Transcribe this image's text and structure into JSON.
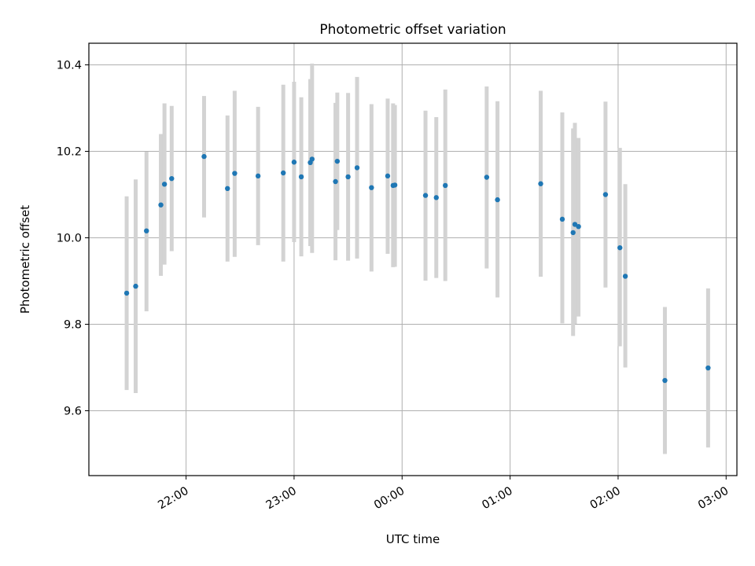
{
  "chart_data": {
    "type": "scatter",
    "title": "Photometric offset variation",
    "xlabel": "UTC time",
    "ylabel": "Photometric offset",
    "xlim": [
      "21:06",
      "03:06"
    ],
    "ylim": [
      9.45,
      10.45
    ],
    "grid": true,
    "x_ticks": [
      "22:00",
      "23:00",
      "00:00",
      "01:00",
      "02:00",
      "03:00"
    ],
    "y_ticks": [
      9.6,
      9.8,
      10.0,
      10.2,
      10.4
    ],
    "colors": {
      "points": "#1f77b4",
      "errorbars": "#d3d3d3",
      "grid": "#b0b0b0"
    },
    "points": [
      {
        "x": "21:27",
        "y": 9.872,
        "ylow": 9.648,
        "yhigh": 10.096
      },
      {
        "x": "21:32",
        "y": 9.888,
        "ylow": 9.641,
        "yhigh": 10.135
      },
      {
        "x": "21:38",
        "y": 10.016,
        "ylow": 9.83,
        "yhigh": 10.199
      },
      {
        "x": "21:46",
        "y": 10.076,
        "ylow": 9.912,
        "yhigh": 10.24
      },
      {
        "x": "21:48",
        "y": 10.124,
        "ylow": 9.938,
        "yhigh": 10.311
      },
      {
        "x": "21:52",
        "y": 10.137,
        "ylow": 9.969,
        "yhigh": 10.305
      },
      {
        "x": "22:10",
        "y": 10.188,
        "ylow": 10.047,
        "yhigh": 10.328
      },
      {
        "x": "22:23",
        "y": 10.114,
        "ylow": 9.945,
        "yhigh": 10.283
      },
      {
        "x": "22:27",
        "y": 10.149,
        "ylow": 9.956,
        "yhigh": 10.34
      },
      {
        "x": "22:40",
        "y": 10.143,
        "ylow": 9.983,
        "yhigh": 10.303
      },
      {
        "x": "22:54",
        "y": 10.15,
        "ylow": 9.945,
        "yhigh": 10.354
      },
      {
        "x": "23:00",
        "y": 10.175,
        "ylow": 9.99,
        "yhigh": 10.361
      },
      {
        "x": "23:04",
        "y": 10.141,
        "ylow": 9.957,
        "yhigh": 10.325
      },
      {
        "x": "23:09",
        "y": 10.174,
        "ylow": 9.981,
        "yhigh": 10.367
      },
      {
        "x": "23:10",
        "y": 10.182,
        "ylow": 9.965,
        "yhigh": 10.403
      },
      {
        "x": "23:23",
        "y": 10.13,
        "ylow": 9.948,
        "yhigh": 10.312
      },
      {
        "x": "23:24",
        "y": 10.177,
        "ylow": 10.018,
        "yhigh": 10.336
      },
      {
        "x": "23:30",
        "y": 10.141,
        "ylow": 9.947,
        "yhigh": 10.335
      },
      {
        "x": "23:35",
        "y": 10.162,
        "ylow": 9.952,
        "yhigh": 10.372
      },
      {
        "x": "23:43",
        "y": 10.116,
        "ylow": 9.922,
        "yhigh": 10.309
      },
      {
        "x": "23:52",
        "y": 10.143,
        "ylow": 9.963,
        "yhigh": 10.322
      },
      {
        "x": "23:55",
        "y": 10.121,
        "ylow": 9.932,
        "yhigh": 10.311
      },
      {
        "x": "23:56",
        "y": 10.122,
        "ylow": 9.933,
        "yhigh": 10.307
      },
      {
        "x": "00:13",
        "y": 10.098,
        "ylow": 9.901,
        "yhigh": 10.294
      },
      {
        "x": "00:19",
        "y": 10.093,
        "ylow": 9.907,
        "yhigh": 10.279
      },
      {
        "x": "00:24",
        "y": 10.121,
        "ylow": 9.9,
        "yhigh": 10.343
      },
      {
        "x": "00:47",
        "y": 10.14,
        "ylow": 9.929,
        "yhigh": 10.35
      },
      {
        "x": "00:53",
        "y": 10.088,
        "ylow": 9.862,
        "yhigh": 10.316
      },
      {
        "x": "01:17",
        "y": 10.125,
        "ylow": 9.91,
        "yhigh": 10.34
      },
      {
        "x": "01:29",
        "y": 10.043,
        "ylow": 9.802,
        "yhigh": 10.29
      },
      {
        "x": "01:35",
        "y": 10.012,
        "ylow": 9.773,
        "yhigh": 10.253
      },
      {
        "x": "01:36",
        "y": 10.031,
        "ylow": 9.801,
        "yhigh": 10.266
      },
      {
        "x": "01:38",
        "y": 10.026,
        "ylow": 9.818,
        "yhigh": 10.231
      },
      {
        "x": "01:53",
        "y": 10.1,
        "ylow": 9.885,
        "yhigh": 10.315
      },
      {
        "x": "02:01",
        "y": 9.977,
        "ylow": 9.749,
        "yhigh": 10.208
      },
      {
        "x": "02:04",
        "y": 9.911,
        "ylow": 9.7,
        "yhigh": 10.124
      },
      {
        "x": "02:26",
        "y": 9.67,
        "ylow": 9.5,
        "yhigh": 9.84
      },
      {
        "x": "02:50",
        "y": 9.699,
        "ylow": 9.515,
        "yhigh": 9.883
      }
    ]
  }
}
